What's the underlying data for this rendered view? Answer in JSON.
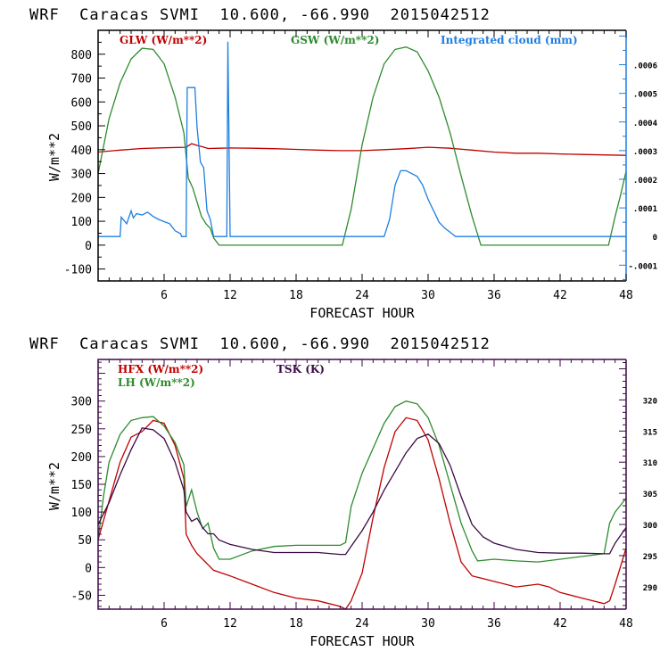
{
  "chart_data": [
    {
      "type": "line",
      "title": "WRF  Caracas SVMI  10.600, -66.990  2015042512",
      "xlabel": "FORECAST HOUR",
      "ylabel": "W/m**2",
      "xlim": [
        0,
        48
      ],
      "ylim": [
        -150,
        900
      ],
      "xticks": [
        6,
        12,
        18,
        24,
        30,
        36,
        42,
        48
      ],
      "xtick_labels": [
        "6",
        "12",
        "18",
        "24",
        "30",
        "36",
        "42",
        "48"
      ],
      "yticks": [
        -100,
        0,
        100,
        200,
        300,
        400,
        500,
        600,
        700,
        800
      ],
      "ytick_labels": [
        "-100",
        "0",
        "100",
        "200",
        "300",
        "400",
        "500",
        "600",
        "700",
        "800"
      ],
      "y2label": "Integrated cloud (mm)",
      "y2lim": [
        -0.000155,
        0.00072
      ],
      "y2ticks": [
        -0.0001,
        0,
        0.0001,
        0.0002,
        0.0003,
        0.0004,
        0.0005,
        0.0006
      ],
      "y2tick_labels": [
        "-.0001",
        "0",
        ".0001",
        ".0002",
        ".0003",
        ".0004",
        ".0005",
        ".0006"
      ],
      "grid": false,
      "legend_position": "top",
      "colors": {
        "axis_left": "#000000",
        "axis_right": "#1e7fe0"
      },
      "series": [
        {
          "name": "GLW (W/m**2)",
          "color": "#c00000",
          "axis": "left",
          "x": [
            0,
            2,
            4,
            6,
            8,
            8.5,
            9,
            9.5,
            10,
            11,
            12,
            14,
            16,
            18,
            20,
            22,
            24,
            26,
            28,
            30,
            32,
            34,
            36,
            38,
            40,
            42,
            44,
            46,
            48
          ],
          "y": [
            390,
            398,
            405,
            408,
            410,
            425,
            418,
            412,
            405,
            406,
            407,
            406,
            404,
            401,
            398,
            396,
            396,
            400,
            404,
            410,
            406,
            398,
            390,
            385,
            385,
            382,
            380,
            378,
            376
          ]
        },
        {
          "name": "GSW (W/m**2)",
          "color": "#2e8b2e",
          "axis": "left",
          "x": [
            0,
            1,
            2,
            3,
            4,
            5,
            6,
            7,
            7.8,
            8.2,
            8.6,
            9,
            9.4,
            9.8,
            10.2,
            10.5,
            11,
            22.2,
            23,
            24,
            25,
            26,
            27,
            28,
            29,
            30,
            31,
            32,
            33,
            34,
            34.8,
            35,
            46.4,
            47,
            47.5,
            48
          ],
          "y": [
            300,
            530,
            680,
            780,
            825,
            820,
            760,
            620,
            470,
            280,
            240,
            180,
            120,
            90,
            70,
            30,
            0,
            0,
            150,
            420,
            620,
            760,
            820,
            830,
            810,
            730,
            620,
            470,
            290,
            120,
            0,
            0,
            0,
            120,
            210,
            310
          ]
        },
        {
          "name": "Integrated cloud (mm)",
          "color": "#1e7fe0",
          "axis": "right",
          "x": [
            0,
            2,
            2.1,
            2.6,
            3,
            3.2,
            3.5,
            4,
            4.5,
            5,
            5.5,
            6,
            6.5,
            7,
            7.5,
            7.6,
            8,
            8.1,
            8.8,
            9,
            9.3,
            9.6,
            9.9,
            10.2,
            10.5,
            11.7,
            11.8,
            12,
            26,
            26.5,
            27,
            27.5,
            28,
            28.5,
            29,
            29.5,
            30,
            30.5,
            31,
            31.5,
            32,
            32.5,
            48
          ],
          "y": [
            0,
            0,
            6.8e-05,
            4.5e-05,
            9e-05,
            6.5e-05,
            8e-05,
            7.5e-05,
            8.5e-05,
            7e-05,
            6e-05,
            5.2e-05,
            4.5e-05,
            2e-05,
            1e-05,
            0,
            0,
            0.00052,
            0.00052,
            0.00038,
            0.00026,
            0.00024,
            9e-05,
            6e-05,
            0,
            0,
            0.00068,
            0,
            0,
            6e-05,
            0.00018,
            0.00023,
            0.00023,
            0.00022,
            0.00021,
            0.00018,
            0.00013,
            9e-05,
            5e-05,
            3e-05,
            1.5e-05,
            0,
            0
          ]
        }
      ]
    },
    {
      "type": "line",
      "title": "WRF  Caracas SVMI  10.600, -66.990  2015042512",
      "xlabel": "FORECAST HOUR",
      "ylabel": "W/m**2",
      "xlim": [
        0,
        48
      ],
      "ylim": [
        -75,
        375
      ],
      "xticks": [
        6,
        12,
        18,
        24,
        30,
        36,
        42,
        48
      ],
      "xtick_labels": [
        "6",
        "12",
        "18",
        "24",
        "30",
        "36",
        "42",
        "48"
      ],
      "yticks": [
        -50,
        0,
        50,
        100,
        150,
        200,
        250,
        300
      ],
      "ytick_labels": [
        "-50",
        "0",
        "50",
        "100",
        "150",
        "200",
        "250",
        "300"
      ],
      "y2label": "TSK (K)",
      "y2lim": [
        286.4,
        326.5
      ],
      "y2ticks": [
        290,
        295,
        300,
        305,
        310,
        315,
        320
      ],
      "y2tick_labels": [
        "290",
        "295",
        "300",
        "305",
        "310",
        "315",
        "320"
      ],
      "grid": false,
      "legend_position": "top",
      "colors": {
        "axis": "#3c0a46"
      },
      "series": [
        {
          "name": "HFX (W/m**2)",
          "color": "#c00000",
          "axis": "left",
          "x": [
            0,
            1,
            2,
            3,
            4,
            5,
            6,
            7,
            7.8,
            8,
            8.5,
            9,
            9.5,
            10,
            10.5,
            12,
            14,
            16,
            18,
            20,
            22,
            22.5,
            23,
            24,
            25,
            26,
            27,
            28,
            29,
            30,
            31,
            32,
            33,
            34,
            35,
            36,
            38,
            40,
            41,
            42,
            44,
            46,
            46.5,
            47,
            48
          ],
          "y": [
            50,
            120,
            190,
            235,
            245,
            265,
            260,
            220,
            160,
            60,
            40,
            25,
            15,
            5,
            -5,
            -15,
            -30,
            -45,
            -55,
            -60,
            -70,
            -75,
            -60,
            -10,
            90,
            180,
            245,
            270,
            265,
            230,
            160,
            80,
            10,
            -15,
            -20,
            -25,
            -35,
            -30,
            -35,
            -45,
            -55,
            -65,
            -60,
            -30,
            35
          ]
        },
        {
          "name": "LH (W/m**2)",
          "color": "#2e8b2e",
          "axis": "left",
          "x": [
            0,
            0.5,
            1,
            2,
            3,
            4,
            5,
            6,
            7,
            7.8,
            8,
            8.5,
            9,
            9.5,
            10,
            10.5,
            11,
            12,
            14,
            16,
            18,
            20,
            22,
            22.5,
            23,
            24,
            25,
            26,
            27,
            28,
            29,
            30,
            31,
            32,
            33,
            34,
            34.5,
            36,
            38,
            40,
            42,
            44,
            46,
            46.5,
            47,
            48
          ],
          "y": [
            50,
            130,
            190,
            240,
            265,
            270,
            272,
            255,
            225,
            185,
            110,
            140,
            100,
            70,
            80,
            35,
            15,
            15,
            30,
            38,
            40,
            40,
            40,
            45,
            110,
            170,
            215,
            260,
            290,
            300,
            295,
            270,
            220,
            150,
            80,
            30,
            12,
            15,
            12,
            10,
            15,
            20,
            25,
            80,
            100,
            125
          ]
        },
        {
          "name": "TSK (K)",
          "color": "#3c0a46",
          "axis": "right",
          "x": [
            0,
            1,
            2,
            3,
            4,
            5,
            6,
            7,
            7.8,
            8,
            8.5,
            9,
            9.5,
            10,
            10.5,
            11,
            12,
            14,
            16,
            18,
            20,
            22,
            22.5,
            23,
            24,
            25,
            26,
            27,
            28,
            29,
            30,
            31,
            32,
            33,
            34,
            35,
            36,
            38,
            40,
            42,
            44,
            46,
            46.5,
            47,
            48
          ],
          "y": [
            300,
            303.5,
            308,
            312,
            315.5,
            315.2,
            313.8,
            310,
            305.5,
            302,
            300.5,
            301,
            299.5,
            298.5,
            298.5,
            297.5,
            296.8,
            296,
            295.5,
            295.5,
            295.5,
            295.2,
            295.2,
            296.5,
            299,
            302,
            305.5,
            308.5,
            311.5,
            313.8,
            314.5,
            313,
            309.5,
            304.5,
            300,
            298,
            297,
            296,
            295.5,
            295.4,
            295.4,
            295.3,
            295.3,
            297,
            299.5
          ]
        }
      ]
    }
  ]
}
